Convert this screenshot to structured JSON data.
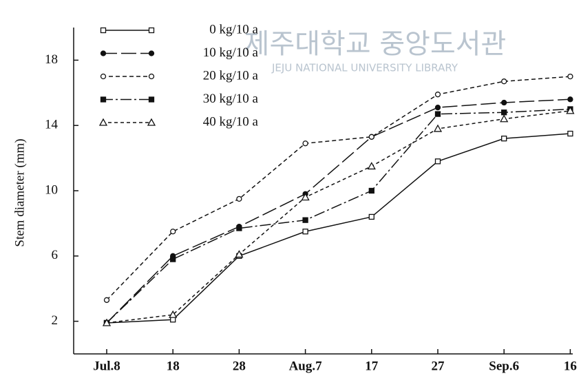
{
  "chart_data": {
    "type": "line",
    "y_label": "Stem diameter (mm)",
    "watermark": [
      "제주대학교 중앙도서관",
      "JEJU NATIONAL UNIVERSITY LIBRARY"
    ],
    "categories": [
      "Jul.8",
      "18",
      "28",
      "Aug.7",
      "17",
      "27",
      "Sep.6",
      "16"
    ],
    "ylim": [
      0,
      20
    ],
    "yticks": [
      2,
      6,
      10,
      14,
      18
    ],
    "series": [
      {
        "name": "0 kg/10 a",
        "color": "#111",
        "marker": "square-open",
        "dash": "none",
        "values": [
          1.9,
          2.1,
          6.0,
          7.5,
          8.4,
          11.8,
          13.2,
          13.5
        ]
      },
      {
        "name": "10 kg/10 a",
        "color": "#111",
        "marker": "circle-filled",
        "dash": "22 6",
        "values": [
          1.9,
          6.0,
          7.8,
          9.8,
          13.3,
          15.1,
          15.4,
          15.6
        ]
      },
      {
        "name": "20 kg/10 a",
        "color": "#111",
        "marker": "circle-open",
        "dash": "6 4",
        "values": [
          3.3,
          7.5,
          9.5,
          12.9,
          13.3,
          15.9,
          16.7,
          17.0
        ]
      },
      {
        "name": "30 kg/10 a",
        "color": "#111",
        "marker": "square-filled",
        "dash": "16 4 3 4",
        "values": [
          1.9,
          5.8,
          7.7,
          8.2,
          10.0,
          14.7,
          14.8,
          15.0
        ]
      },
      {
        "name": "40 kg/10 a",
        "color": "#111",
        "marker": "triangle-open",
        "dash": "5 4",
        "values": [
          1.9,
          2.4,
          6.1,
          9.6,
          11.5,
          13.8,
          14.4,
          14.9
        ]
      }
    ]
  }
}
